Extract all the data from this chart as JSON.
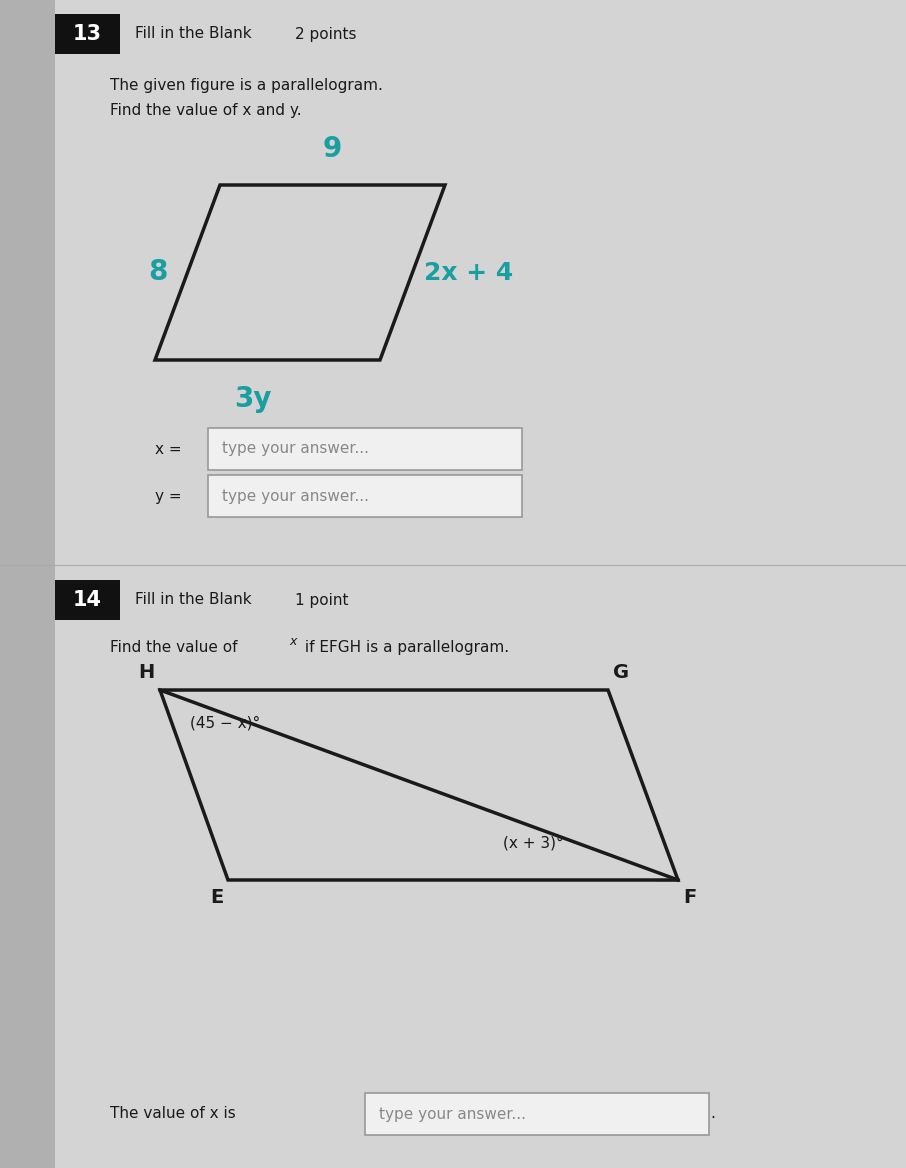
{
  "bg_color": "#c8c8c8",
  "content_bg": "#d4d4d4",
  "q13_number": "13",
  "q13_label": "Fill in the Blank",
  "q13_points": "2 points",
  "q13_text1": "The given figure is a parallelogram.",
  "q13_text2": "Find the value of x and y.",
  "para1_top_label": "9",
  "para1_right_label": "2x + 4",
  "para1_left_label": "8",
  "para1_bottom_label": "3y",
  "para1_label_color": "#1a9fa0",
  "q13_answer1_prefix": "x =",
  "q13_answer1_placeholder": "type your answer...",
  "q13_answer2_prefix": "y =",
  "q13_answer2_placeholder": "type your answer...",
  "q14_number": "14",
  "q14_label": "Fill in the Blank",
  "q14_points": "1 point",
  "q14_text1": "Find the value of ",
  "q14_x_super": "x",
  "q14_text2": " if EFGH is a parallelogram.",
  "para2_angle1_label": "(45 − x)°",
  "para2_angle2_label": "(x + 3)°",
  "q14_answer_prefix": "The value of x is",
  "q14_answer_placeholder": "type your answer...",
  "number_box_color": "#111111",
  "number_text_color": "#ffffff",
  "text_color": "#1a1a1a",
  "line_color": "#1a1a1a",
  "input_box_color": "#f0f0f0",
  "input_border_color": "#999999"
}
